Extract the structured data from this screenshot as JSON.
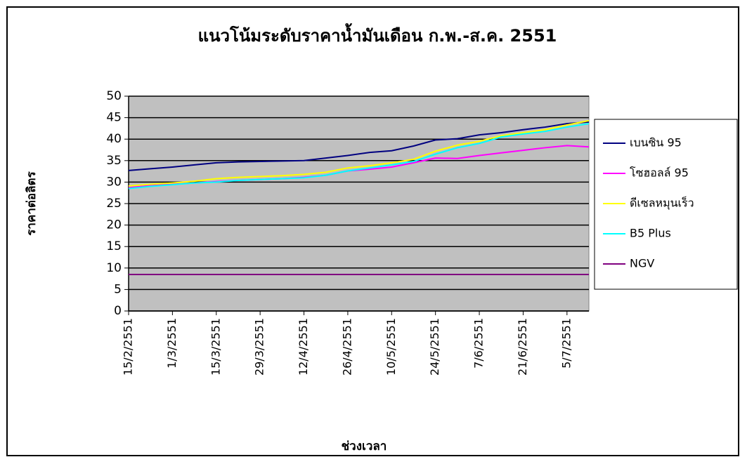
{
  "chart_data": {
    "type": "line",
    "title": "แนวโน้มระดับราคาน้ำมันเดือน ก.พ.-ส.ค. 2551",
    "x_label": "ช่วงเวลา",
    "y_label": "ราคาต่อลิตร",
    "categories": [
      "15/2/2551",
      null,
      "1/3/2551",
      null,
      "15/3/2551",
      null,
      "29/3/2551",
      null,
      "12/4/2551",
      null,
      "26/4/2551",
      null,
      "10/5/2551",
      null,
      "24/5/2551",
      null,
      "7/6/2551",
      null,
      "21/6/2551",
      null,
      "5/7/2551",
      null
    ],
    "series": [
      {
        "name": "เบนซิน 95",
        "color": "#000080",
        "values": [
          32.7,
          33.1,
          33.5,
          34,
          34.5,
          34.7,
          34.8,
          34.9,
          35,
          35.6,
          36.2,
          36.9,
          37.3,
          38.4,
          39.8,
          40.1,
          41,
          41.5,
          42.2,
          42.8,
          43.6,
          44
        ]
      },
      {
        "name": "โซฮอลล์ 95",
        "color": "#ff00ff",
        "values": [
          28.7,
          29.2,
          29.5,
          29.8,
          30.1,
          30.4,
          30.6,
          30.8,
          31.1,
          31.6,
          32.6,
          33,
          33.5,
          34.5,
          35.6,
          35.5,
          36.2,
          36.8,
          37.4,
          38,
          38.5,
          38.2
        ]
      },
      {
        "name": "ดีเซลหมุนเร็ว",
        "color": "#ffff00",
        "values": [
          29.1,
          29.5,
          29.8,
          30.2,
          30.8,
          31.1,
          31.3,
          31.5,
          31.8,
          32.3,
          33.3,
          33.8,
          34.5,
          35.3,
          37.2,
          38.6,
          39.5,
          40.8,
          41.5,
          42.2,
          43.3,
          44.3
        ]
      },
      {
        "name": "B5 Plus",
        "color": "#00ffff",
        "values": [
          28.5,
          29,
          29.4,
          29.8,
          30,
          30.4,
          30.6,
          30.8,
          31,
          31.6,
          32.6,
          33.3,
          34,
          34.8,
          36.5,
          38,
          39,
          40.5,
          41.2,
          41.8,
          42.8,
          43.6
        ]
      },
      {
        "name": "NGV",
        "color": "#800080",
        "values": [
          8.5,
          8.5,
          8.5,
          8.5,
          8.5,
          8.5,
          8.5,
          8.5,
          8.5,
          8.5,
          8.5,
          8.5,
          8.5,
          8.5,
          8.5,
          8.5,
          8.5,
          8.5,
          8.5,
          8.5,
          8.5,
          8.5
        ]
      }
    ],
    "ylim": [
      0,
      50
    ],
    "yticks": [
      0,
      5,
      10,
      15,
      20,
      25,
      30,
      35,
      40,
      45,
      50
    ],
    "grid": true,
    "legend": "right",
    "plot_background": "#c0c0c0"
  }
}
